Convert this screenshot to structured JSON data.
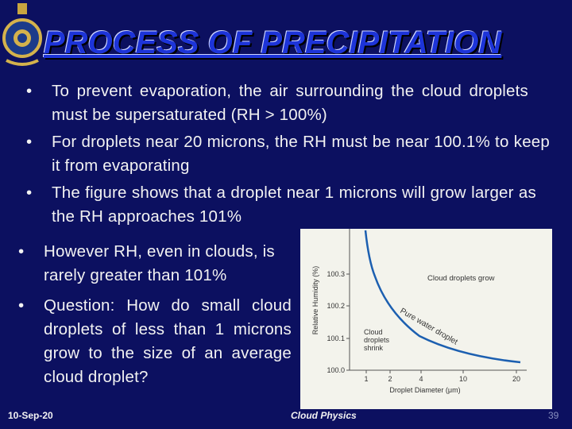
{
  "header": {
    "title": "PROCESS OF PRECIPITATION"
  },
  "bullets_top": [
    "To prevent evaporation, the air surrounding the cloud droplets must be supersaturated (RH > 100%)",
    "For droplets near 20 microns, the RH must be near 100.1% to keep it from evaporating",
    "The figure shows that a droplet near 1 microns will grow larger as the RH approaches 101%"
  ],
  "bullets_left": [
    "However RH, even in clouds, is rarely greater than 101%",
    "Question: How do small cloud droplets of less than 1 microns grow to the size of an average cloud droplet?"
  ],
  "figure": {
    "y_label": "Relative Humidity (%)",
    "x_label": "Droplet Diameter (μm)",
    "y_ticks": [
      "100.3",
      "100.2",
      "100.1",
      "100.0"
    ],
    "x_ticks": [
      "1",
      "2",
      "4",
      "10",
      "20"
    ],
    "curve_label": "Pure water droplet",
    "grow_label": "Cloud droplets grow",
    "shrink_label": "Cloud droplets shrink"
  },
  "footer": {
    "date": "10-Sep-20",
    "center": "Cloud Physics",
    "page": "39"
  }
}
